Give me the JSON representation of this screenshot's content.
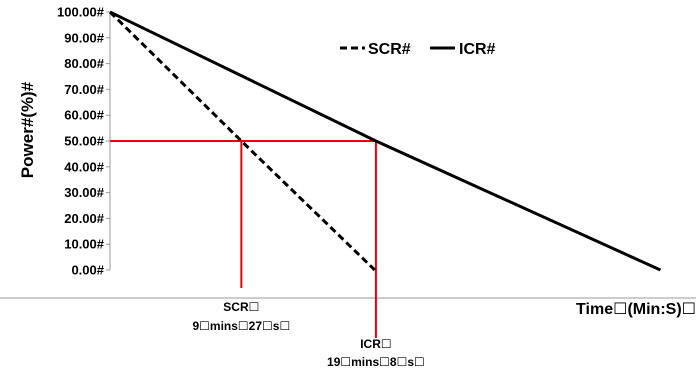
{
  "chart_data": {
    "type": "line",
    "ylabel": "Power#(%)#",
    "xlabel": "Time☐(Min:S)☐",
    "ylim": [
      0,
      100
    ],
    "yticks": [
      "0.00#",
      "10.00#",
      "20.00#",
      "30.00#",
      "40.00#",
      "50.00#",
      "60.00#",
      "70.00#",
      "80.00#",
      "90.00#",
      "100.00#"
    ],
    "grid": false,
    "legend_position": "top-right",
    "series": [
      {
        "name": "SCR#",
        "style": "dashed",
        "color": "#000000",
        "x": [
          0,
          9.45,
          19.05
        ],
        "y": [
          100,
          50,
          0
        ]
      },
      {
        "name": "ICR#",
        "style": "solid",
        "color": "#000000",
        "x": [
          0,
          19.13,
          39.6
        ],
        "y": [
          100,
          50,
          0
        ]
      }
    ],
    "reference": {
      "y": 50,
      "color": "#e8000b"
    },
    "annotations": [
      {
        "series": "SCR#",
        "x": 9.45,
        "lines": [
          "SCR☐",
          "9☐mins☐27☐s☐"
        ]
      },
      {
        "series": "ICR#",
        "x": 19.13,
        "lines": [
          "ICR☐",
          "19☐mins☐8☐s☐"
        ]
      }
    ]
  }
}
